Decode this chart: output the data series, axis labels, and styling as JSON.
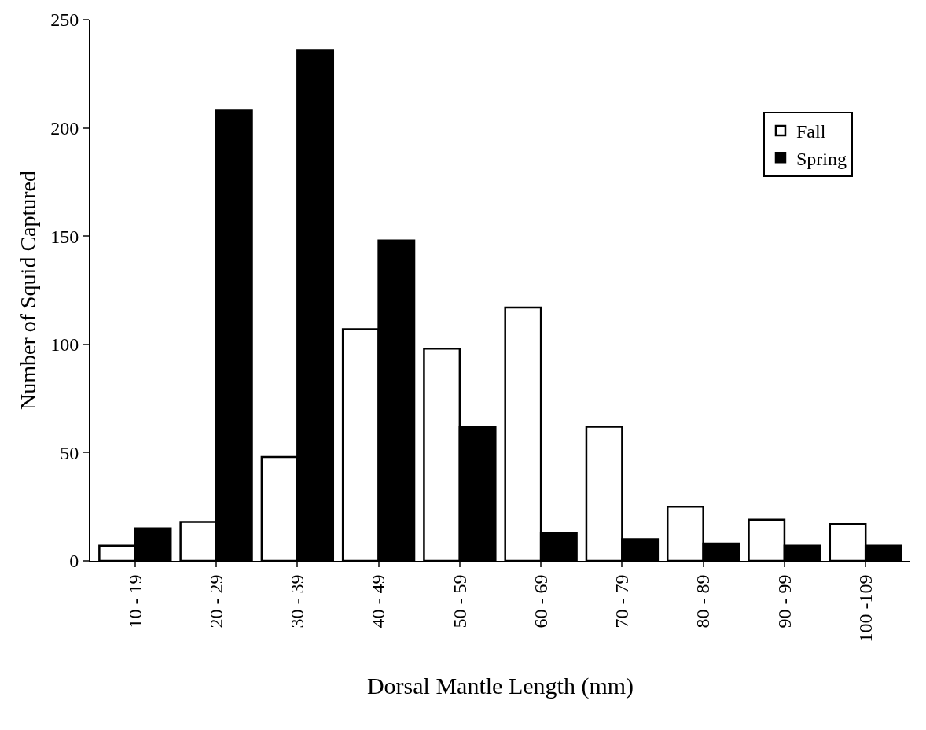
{
  "chart_data": {
    "type": "bar",
    "xlabel": "Dorsal Mantle Length (mm)",
    "ylabel": "Number of Squid Captured",
    "categories": [
      "10 - 19",
      "20 - 29",
      "30 - 39",
      "40 - 49",
      "50 - 59",
      "60 - 69",
      "70 - 79",
      "80 - 89",
      "90 - 99",
      "100 -109"
    ],
    "series": [
      {
        "name": "Fall",
        "color": "#ffffff",
        "values": [
          7,
          18,
          48,
          107,
          98,
          117,
          62,
          25,
          19,
          17
        ]
      },
      {
        "name": "Spring",
        "color": "#000000",
        "values": [
          15,
          208,
          236,
          148,
          62,
          13,
          10,
          8,
          7,
          7
        ]
      }
    ],
    "ylim": [
      0,
      250
    ],
    "yticks": [
      0,
      50,
      100,
      150,
      200,
      250
    ],
    "legend": "top right"
  }
}
